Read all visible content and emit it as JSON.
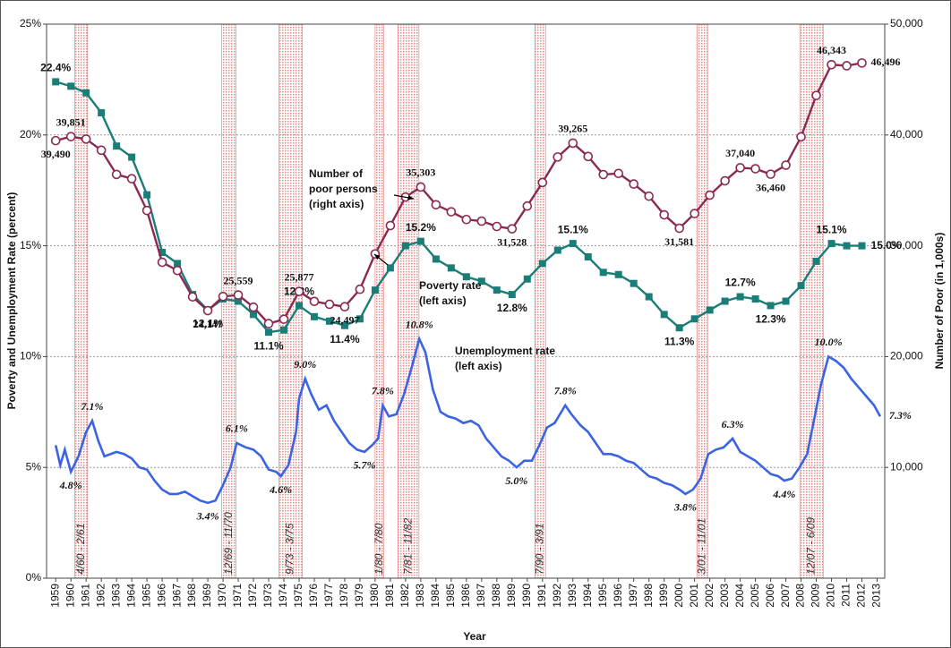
{
  "chart_data": {
    "type": "line",
    "xlabel": "Year",
    "ylabel": "Poverty and Unemployment Rate (percent)",
    "y2label": "Number of Poor (in 1,000s)",
    "xlim": [
      1958.4,
      2013.5
    ],
    "xticks": [
      1959,
      1960,
      1961,
      1962,
      1963,
      1964,
      1965,
      1966,
      1967,
      1968,
      1969,
      1970,
      1971,
      1972,
      1973,
      1974,
      1975,
      1976,
      1977,
      1978,
      1979,
      1980,
      1981,
      1982,
      1983,
      1984,
      1985,
      1986,
      1987,
      1988,
      1989,
      1990,
      1991,
      1992,
      1993,
      1994,
      1995,
      1996,
      1997,
      1998,
      1999,
      2000,
      2001,
      2002,
      2003,
      2004,
      2005,
      2006,
      2007,
      2008,
      2009,
      2010,
      2011,
      2012,
      2013
    ],
    "ylim": [
      0,
      25
    ],
    "yticks": [
      {
        "value": 0,
        "label": "0%"
      },
      {
        "value": 5,
        "label": "5%"
      },
      {
        "value": 10,
        "label": "10%"
      },
      {
        "value": 15,
        "label": "15%"
      },
      {
        "value": 20,
        "label": "20%"
      },
      {
        "value": 25,
        "label": "25%"
      }
    ],
    "y2lim": [
      0,
      50000
    ],
    "y2ticks": [
      {
        "value": 10000,
        "label": "10,000"
      },
      {
        "value": 20000,
        "label": "20,000"
      },
      {
        "value": 30000,
        "label": "30,000"
      },
      {
        "value": 40000,
        "label": "40,000"
      },
      {
        "value": 50000,
        "label": "50,000"
      }
    ],
    "grid": true,
    "x": [
      1959,
      1960,
      1961,
      1962,
      1963,
      1964,
      1965,
      1966,
      1967,
      1968,
      1969,
      1970,
      1971,
      1972,
      1973,
      1974,
      1975,
      1976,
      1977,
      1978,
      1979,
      1980,
      1981,
      1982,
      1983,
      1984,
      1985,
      1986,
      1987,
      1988,
      1989,
      1990,
      1991,
      1992,
      1993,
      1994,
      1995,
      1996,
      1997,
      1998,
      1999,
      2000,
      2001,
      2002,
      2003,
      2004,
      2005,
      2006,
      2007,
      2008,
      2009,
      2010,
      2011,
      2012
    ],
    "series": [
      {
        "name": [
          "Poverty rate",
          "(left axis)"
        ],
        "color": "#1b7d78",
        "marker": "square",
        "axis": "y",
        "values": [
          22.4,
          22.2,
          21.9,
          21.0,
          19.5,
          19.0,
          17.3,
          14.7,
          14.2,
          12.8,
          12.1,
          12.6,
          12.5,
          11.9,
          11.1,
          11.2,
          12.3,
          11.8,
          11.6,
          11.4,
          11.7,
          13.0,
          14.0,
          15.0,
          15.2,
          14.4,
          14.0,
          13.6,
          13.4,
          13.0,
          12.8,
          13.5,
          14.2,
          14.8,
          15.1,
          14.5,
          13.8,
          13.7,
          13.3,
          12.7,
          11.9,
          11.3,
          11.7,
          12.1,
          12.5,
          12.7,
          12.6,
          12.3,
          12.5,
          13.2,
          14.3,
          15.1,
          15.0,
          15.0
        ],
        "value_labels": [
          "22.4%",
          null,
          null,
          null,
          null,
          null,
          null,
          null,
          null,
          null,
          "12.1%",
          null,
          null,
          null,
          "11.1%",
          null,
          "12.3%",
          null,
          null,
          "11.4%",
          null,
          null,
          null,
          null,
          "15.2%",
          null,
          null,
          null,
          null,
          null,
          "12.8%",
          null,
          null,
          null,
          "15.1%",
          null,
          null,
          null,
          null,
          null,
          null,
          "11.3%",
          null,
          null,
          null,
          "12.7%",
          null,
          "12.3%",
          null,
          null,
          null,
          "15.1%",
          null,
          "15.0%"
        ]
      },
      {
        "name": [
          "Number of",
          "poor persons",
          "(right axis)"
        ],
        "color": "#8a2a52",
        "marker": "circle",
        "axis": "y2",
        "values": [
          39490,
          39851,
          39628,
          38625,
          36436,
          36055,
          33185,
          28510,
          27769,
          25389,
          24147,
          25420,
          25559,
          24460,
          22973,
          23370,
          25877,
          24975,
          24720,
          24497,
          26072,
          29272,
          31822,
          34398,
          35303,
          33700,
          33064,
          32370,
          32221,
          31745,
          31528,
          33585,
          35708,
          38014,
          39265,
          38059,
          36425,
          36529,
          35574,
          34476,
          32791,
          31581,
          32907,
          34570,
          35861,
          37040,
          36950,
          36460,
          37276,
          39829,
          43569,
          46343,
          46247,
          46496
        ],
        "value_labels": [
          "39,490",
          "39,851",
          null,
          null,
          null,
          null,
          null,
          null,
          null,
          null,
          "24,147",
          null,
          "25,559",
          null,
          null,
          null,
          "25,877",
          null,
          null,
          "24,497",
          null,
          null,
          null,
          null,
          "35,303",
          null,
          null,
          null,
          null,
          null,
          "31,528",
          null,
          null,
          null,
          "39,265",
          null,
          null,
          null,
          null,
          null,
          null,
          "31,581",
          null,
          null,
          null,
          "37,040",
          null,
          "36,460",
          null,
          null,
          null,
          "46,343",
          null,
          "46,496"
        ]
      },
      {
        "name": [
          "Unemployment rate",
          "(left axis)"
        ],
        "color": "#3b63e3",
        "marker": "none",
        "axis": "y",
        "x": [
          1959.0,
          1959.3,
          1959.6,
          1960.0,
          1960.5,
          1961.0,
          1961.4,
          1961.8,
          1962.2,
          1962.6,
          1963.0,
          1963.5,
          1964.0,
          1964.5,
          1965.0,
          1965.5,
          1966.0,
          1966.5,
          1967.0,
          1967.5,
          1968.0,
          1968.5,
          1969.0,
          1969.5,
          1970.0,
          1970.5,
          1970.9,
          1971.5,
          1972.0,
          1972.5,
          1973.0,
          1973.5,
          1973.8,
          1974.3,
          1974.8,
          1975.0,
          1975.4,
          1975.8,
          1976.3,
          1976.8,
          1977.3,
          1977.8,
          1978.3,
          1978.8,
          1979.3,
          1979.8,
          1980.2,
          1980.5,
          1980.9,
          1981.4,
          1981.9,
          1982.4,
          1982.9,
          1983.3,
          1983.8,
          1984.3,
          1984.8,
          1985.3,
          1985.8,
          1986.3,
          1986.8,
          1987.3,
          1987.8,
          1988.3,
          1988.8,
          1989.3,
          1989.8,
          1990.3,
          1990.8,
          1991.3,
          1991.8,
          1992.5,
          1992.9,
          1993.5,
          1994.0,
          1994.5,
          1995.0,
          1995.5,
          1996.0,
          1996.5,
          1997.0,
          1997.5,
          1998.0,
          1998.5,
          1999.0,
          1999.5,
          2000.0,
          2000.4,
          2000.9,
          2001.4,
          2001.9,
          2002.4,
          2002.9,
          2003.5,
          2004.0,
          2004.5,
          2005.0,
          2005.5,
          2006.0,
          2006.5,
          2006.9,
          2007.4,
          2007.9,
          2008.4,
          2008.9,
          2009.3,
          2009.8,
          2010.3,
          2010.8,
          2011.3,
          2011.8,
          2012.3,
          2012.8,
          2013.2
        ],
        "values": [
          6.0,
          5.1,
          5.8,
          4.8,
          5.5,
          6.6,
          7.1,
          6.2,
          5.5,
          5.6,
          5.7,
          5.6,
          5.4,
          5.0,
          4.9,
          4.4,
          4.0,
          3.8,
          3.8,
          3.9,
          3.7,
          3.5,
          3.4,
          3.5,
          4.2,
          5.0,
          6.1,
          5.9,
          5.8,
          5.5,
          4.9,
          4.8,
          4.6,
          5.1,
          6.6,
          8.1,
          9.0,
          8.3,
          7.6,
          7.8,
          7.1,
          6.6,
          6.1,
          5.8,
          5.7,
          6.0,
          6.3,
          7.8,
          7.3,
          7.4,
          8.3,
          9.5,
          10.8,
          10.2,
          8.5,
          7.5,
          7.3,
          7.2,
          7.0,
          7.1,
          6.9,
          6.3,
          5.9,
          5.5,
          5.3,
          5.0,
          5.3,
          5.3,
          6.0,
          6.8,
          7.0,
          7.8,
          7.4,
          6.9,
          6.6,
          6.1,
          5.6,
          5.6,
          5.5,
          5.3,
          5.2,
          4.9,
          4.6,
          4.5,
          4.3,
          4.2,
          4.0,
          3.8,
          4.0,
          4.5,
          5.6,
          5.8,
          5.9,
          6.3,
          5.7,
          5.5,
          5.3,
          5.0,
          4.7,
          4.6,
          4.4,
          4.5,
          5.0,
          5.6,
          7.3,
          8.7,
          10.0,
          9.8,
          9.5,
          9.0,
          8.6,
          8.2,
          7.8,
          7.3
        ],
        "value_labels": [
          null,
          null,
          null,
          "4.8%",
          null,
          null,
          "7.1%",
          null,
          null,
          null,
          null,
          null,
          null,
          null,
          null,
          null,
          null,
          null,
          null,
          null,
          null,
          null,
          "3.4%",
          null,
          null,
          null,
          "6.1%",
          null,
          null,
          null,
          null,
          null,
          "4.6%",
          null,
          null,
          null,
          "9.0%",
          null,
          null,
          null,
          null,
          null,
          null,
          null,
          "5.7%",
          null,
          null,
          "7.8%",
          null,
          null,
          null,
          null,
          "10.8%",
          null,
          null,
          null,
          null,
          null,
          null,
          null,
          null,
          null,
          null,
          null,
          null,
          "5.0%",
          null,
          null,
          null,
          null,
          null,
          "7.8%",
          null,
          null,
          null,
          null,
          null,
          null,
          null,
          null,
          null,
          null,
          null,
          null,
          null,
          null,
          null,
          "3.8%",
          null,
          null,
          null,
          null,
          null,
          "6.3%",
          null,
          null,
          null,
          null,
          null,
          null,
          "4.4%",
          null,
          null,
          null,
          null,
          null,
          "10.0%",
          null,
          null,
          null,
          null,
          null,
          null,
          "7.3%"
        ]
      }
    ],
    "recessions": [
      {
        "label": "4/60 - 2/61",
        "start": 1960.25,
        "end": 1961.1
      },
      {
        "label": "12/69 - 11/70",
        "start": 1969.92,
        "end": 1970.85
      },
      {
        "label": "9/73 - 3/75",
        "start": 1973.67,
        "end": 1975.2
      },
      {
        "label": "1/80 - 7/80",
        "start": 1980.0,
        "end": 1980.55
      },
      {
        "label": "7/81 - 11/82",
        "start": 1981.5,
        "end": 1982.88
      },
      {
        "label": "7/90 - 3/91",
        "start": 1990.5,
        "end": 1991.2
      },
      {
        "label": "3/01 - 11/01",
        "start": 2001.17,
        "end": 2001.85
      },
      {
        "label": "12/07 - 6/09",
        "start": 2007.92,
        "end": 2009.45
      }
    ]
  }
}
